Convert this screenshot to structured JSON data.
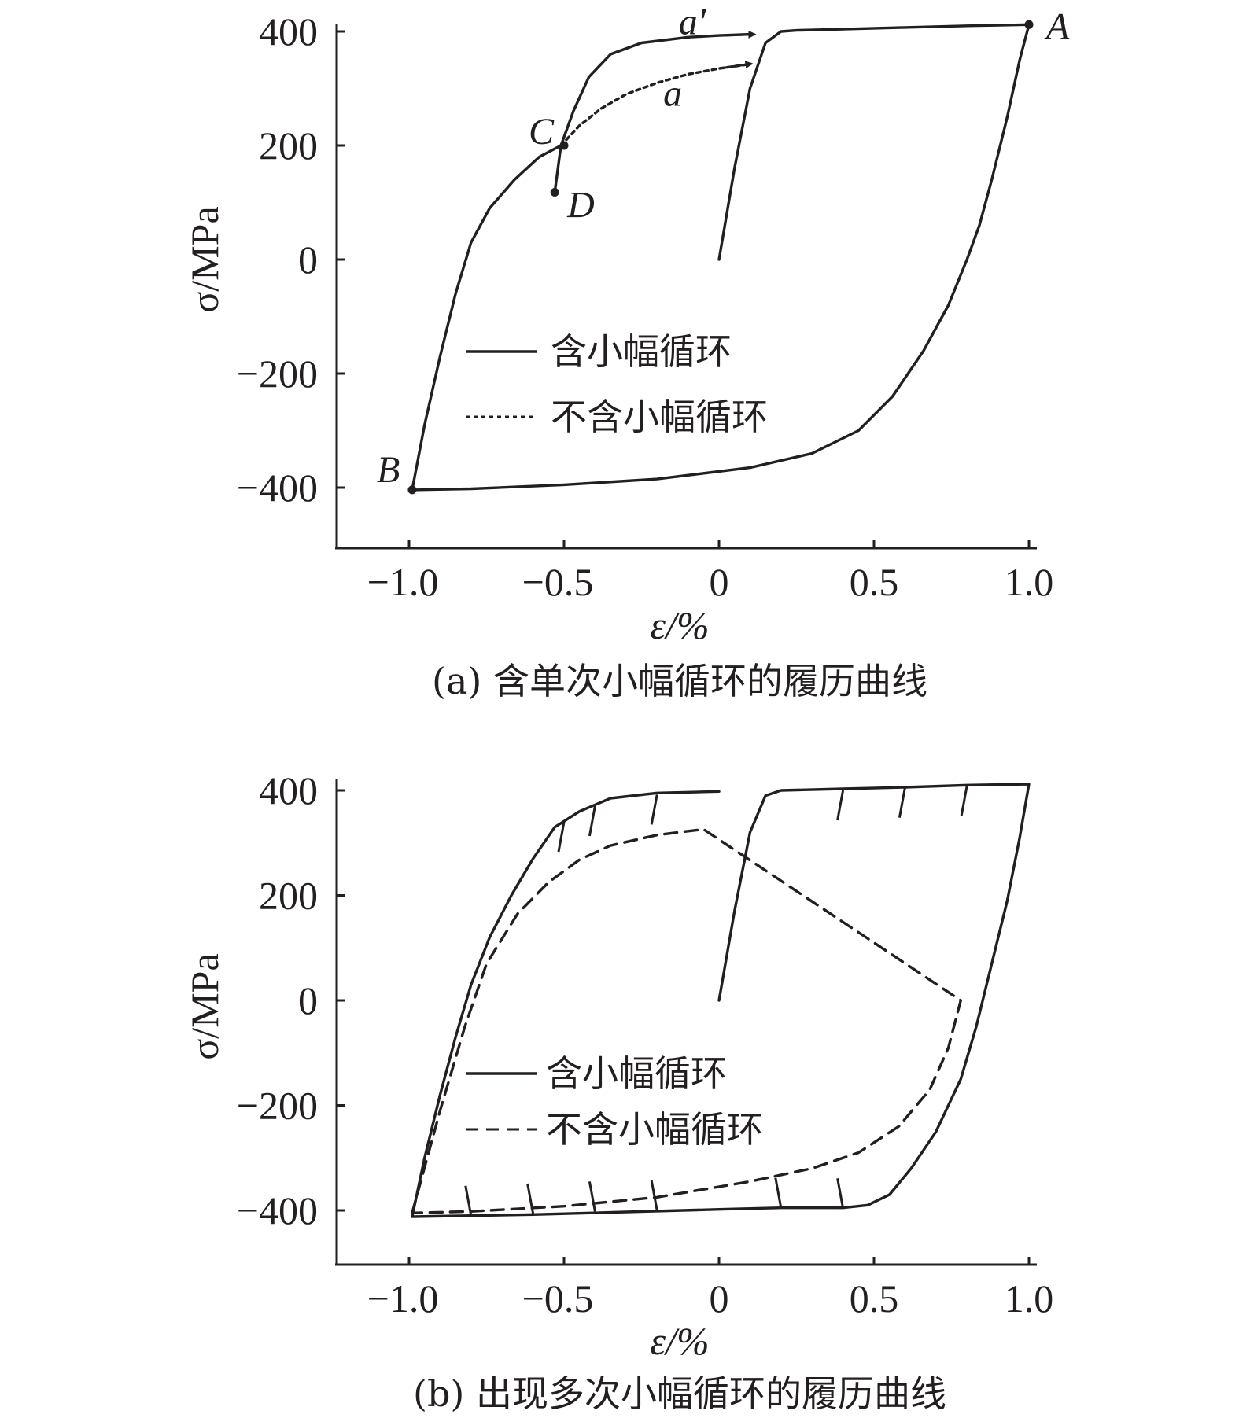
{
  "chart_data": [
    {
      "type": "line",
      "caption": "(a) 含单次小幅循环的履历曲线",
      "xlabel": "ε/%",
      "ylabel": "σ/MPa",
      "xlim": [
        -1.25,
        1.02
      ],
      "ylim": [
        -500,
        420
      ],
      "xticks": [
        -1.0,
        -0.5,
        0,
        0.5,
        1.0
      ],
      "xtick_labels": [
        "−1.0",
        "−0.5",
        "0",
        "0.5",
        "1.0"
      ],
      "yticks": [
        400,
        200,
        0,
        -200,
        -400
      ],
      "ytick_labels": [
        "400",
        "200",
        "0",
        "−200",
        "−400"
      ],
      "legend": {
        "position": "center",
        "entries": [
          "含小幅循环",
          "不含小幅循环"
        ]
      },
      "series": [
        {
          "name": "含小幅循环",
          "style": "solid",
          "points": [
            [
              0,
              0
            ],
            [
              0.05,
              160
            ],
            [
              0.1,
              300
            ],
            [
              0.15,
              380
            ],
            [
              0.2,
              400
            ],
            [
              0.25,
              402
            ],
            [
              0.4,
              404
            ],
            [
              0.6,
              407
            ],
            [
              0.8,
              410
            ],
            [
              1.0,
              412
            ],
            [
              0.97,
              350
            ],
            [
              0.93,
              250
            ],
            [
              0.88,
              140
            ],
            [
              0.84,
              60
            ],
            [
              0.8,
              0
            ],
            [
              0.74,
              -80
            ],
            [
              0.66,
              -160
            ],
            [
              0.56,
              -240
            ],
            [
              0.45,
              -300
            ],
            [
              0.3,
              -340
            ],
            [
              0.1,
              -365
            ],
            [
              -0.2,
              -385
            ],
            [
              -0.5,
              -395
            ],
            [
              -0.8,
              -402
            ],
            [
              -0.99,
              -404
            ],
            [
              -0.95,
              -290
            ],
            [
              -0.9,
              -170
            ],
            [
              -0.85,
              -60
            ],
            [
              -0.8,
              30
            ],
            [
              -0.74,
              90
            ],
            [
              -0.66,
              140
            ],
            [
              -0.58,
              180
            ],
            [
              -0.51,
              200
            ],
            [
              -0.53,
              118
            ],
            [
              -0.51,
              200
            ],
            [
              -0.47,
              260
            ],
            [
              -0.42,
              320
            ],
            [
              -0.35,
              360
            ],
            [
              -0.25,
              380
            ],
            [
              -0.1,
              390
            ],
            [
              0.0,
              393
            ],
            [
              0.1,
              395
            ]
          ]
        },
        {
          "name": "不含小幅循环",
          "style": "dotted",
          "points": [
            [
              -0.51,
              200
            ],
            [
              -0.45,
              235
            ],
            [
              -0.38,
              265
            ],
            [
              -0.3,
              290
            ],
            [
              -0.2,
              310
            ],
            [
              -0.1,
              325
            ],
            [
              0.0,
              335
            ],
            [
              0.09,
              342
            ]
          ]
        }
      ],
      "markers": [
        {
          "label": "A",
          "x": 1.0,
          "y": 412
        },
        {
          "label": "B",
          "x": -0.99,
          "y": -404
        },
        {
          "label": "C",
          "x": -0.5,
          "y": 200
        },
        {
          "label": "D",
          "x": -0.53,
          "y": 118
        }
      ],
      "annotations": [
        {
          "label": "a'",
          "x": -0.13,
          "y": 395
        },
        {
          "label": "a",
          "x": -0.18,
          "y": 270
        }
      ]
    },
    {
      "type": "line",
      "caption": "(b) 出现多次小幅循环的履历曲线",
      "xlabel": "ε/%",
      "ylabel": "σ/MPa",
      "xlim": [
        -1.25,
        1.02
      ],
      "ylim": [
        -500,
        420
      ],
      "xticks": [
        -1.0,
        -0.5,
        0,
        0.5,
        1.0
      ],
      "xtick_labels": [
        "−1.0",
        "−0.5",
        "0",
        "0.5",
        "1.0"
      ],
      "yticks": [
        400,
        200,
        0,
        -200,
        -400
      ],
      "ytick_labels": [
        "400",
        "200",
        "0",
        "−200",
        "−400"
      ],
      "legend": {
        "position": "center",
        "entries": [
          "含小幅循环",
          "不含小幅循环"
        ]
      },
      "series": [
        {
          "name": "含小幅循环",
          "style": "solid",
          "points": [
            [
              0,
              0
            ],
            [
              0.05,
              170
            ],
            [
              0.1,
              320
            ],
            [
              0.15,
              390
            ],
            [
              0.2,
              400
            ],
            [
              0.4,
              403
            ],
            [
              0.6,
              406
            ],
            [
              0.8,
              410
            ],
            [
              1.0,
              412
            ],
            [
              0.97,
              310
            ],
            [
              0.93,
              190
            ],
            [
              0.88,
              70
            ],
            [
              0.83,
              -50
            ],
            [
              0.78,
              -150
            ],
            [
              0.7,
              -250
            ],
            [
              0.62,
              -320
            ],
            [
              0.55,
              -370
            ],
            [
              0.48,
              -390
            ],
            [
              0.4,
              -395
            ],
            [
              0.2,
              -395
            ],
            [
              0.0,
              -398
            ],
            [
              -0.3,
              -403
            ],
            [
              -0.6,
              -408
            ],
            [
              -0.99,
              -412
            ],
            [
              -0.95,
              -300
            ],
            [
              -0.9,
              -180
            ],
            [
              -0.85,
              -70
            ],
            [
              -0.8,
              30
            ],
            [
              -0.74,
              120
            ],
            [
              -0.67,
              200
            ],
            [
              -0.6,
              270
            ],
            [
              -0.53,
              330
            ],
            [
              -0.45,
              360
            ],
            [
              -0.35,
              385
            ],
            [
              -0.2,
              395
            ],
            [
              0.0,
              398
            ]
          ]
        },
        {
          "name": "不含小幅循环",
          "style": "dashed",
          "points": [
            [
              -0.99,
              -405
            ],
            [
              -0.9,
              -210
            ],
            [
              -0.82,
              -50
            ],
            [
              -0.75,
              70
            ],
            [
              -0.65,
              165
            ],
            [
              -0.55,
              225
            ],
            [
              -0.45,
              268
            ],
            [
              -0.35,
              295
            ],
            [
              -0.2,
              315
            ],
            [
              -0.05,
              326
            ],
            [
              0.78,
              0
            ],
            [
              0.74,
              -90
            ],
            [
              0.68,
              -170
            ],
            [
              0.58,
              -240
            ],
            [
              0.45,
              -290
            ],
            [
              0.3,
              -320
            ],
            [
              0.1,
              -345
            ],
            [
              -0.2,
              -375
            ],
            [
              -0.5,
              -392
            ],
            [
              -0.8,
              -402
            ],
            [
              -0.99,
              -405
            ]
          ]
        }
      ],
      "small_cycles": [
        [
          0.4,
          400
        ],
        [
          0.6,
          405
        ],
        [
          0.8,
          409
        ],
        [
          0.2,
          -395
        ],
        [
          0.4,
          -396
        ],
        [
          -0.2,
          -400
        ],
        [
          -0.4,
          -402
        ],
        [
          -0.6,
          -406
        ],
        [
          -0.8,
          -410
        ],
        [
          -0.5,
          340
        ],
        [
          -0.4,
          370
        ],
        [
          -0.2,
          392
        ]
      ]
    }
  ]
}
